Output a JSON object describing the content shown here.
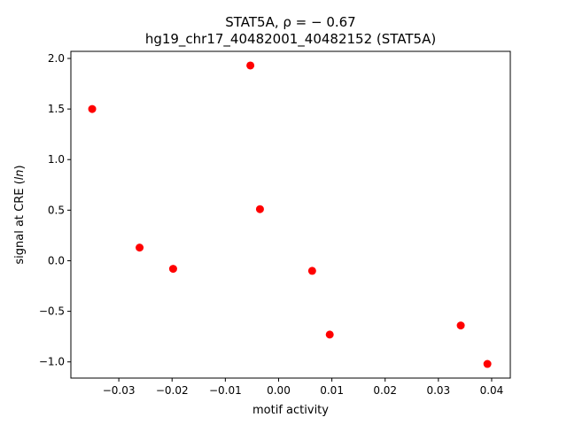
{
  "chart_data": {
    "type": "scatter",
    "title_line1": "STAT5A, ρ = − 0.67",
    "title_line2": "hg19_chr17_40482001_40482152 (STAT5A)",
    "xlabel": "motif activity",
    "ylabel": "signal at CRE (ln)",
    "xlim": [
      -0.039,
      0.0435
    ],
    "ylim": [
      -1.16,
      2.07
    ],
    "x_ticks": [
      -0.03,
      -0.02,
      -0.01,
      0.0,
      0.01,
      0.02,
      0.03,
      0.04
    ],
    "x_tick_labels": [
      "−0.03",
      "−0.02",
      "−0.01",
      "0.00",
      "0.01",
      "0.02",
      "0.03",
      "0.04"
    ],
    "y_ticks": [
      -1.0,
      -0.5,
      0.0,
      0.5,
      1.0,
      1.5,
      2.0
    ],
    "y_tick_labels": [
      "−1.0",
      "−0.5",
      "0.0",
      "0.5",
      "1.0",
      "1.5",
      "2.0"
    ],
    "marker_color": "#ff0000",
    "grid": false,
    "points": [
      {
        "x": -0.035,
        "y": 1.5
      },
      {
        "x": -0.0261,
        "y": 0.13
      },
      {
        "x": -0.0198,
        "y": -0.08
      },
      {
        "x": -0.0053,
        "y": 1.93
      },
      {
        "x": -0.0035,
        "y": 0.51
      },
      {
        "x": 0.0063,
        "y": -0.1
      },
      {
        "x": 0.0096,
        "y": -0.73
      },
      {
        "x": 0.0342,
        "y": -0.64
      },
      {
        "x": 0.0392,
        "y": -1.02
      }
    ]
  }
}
